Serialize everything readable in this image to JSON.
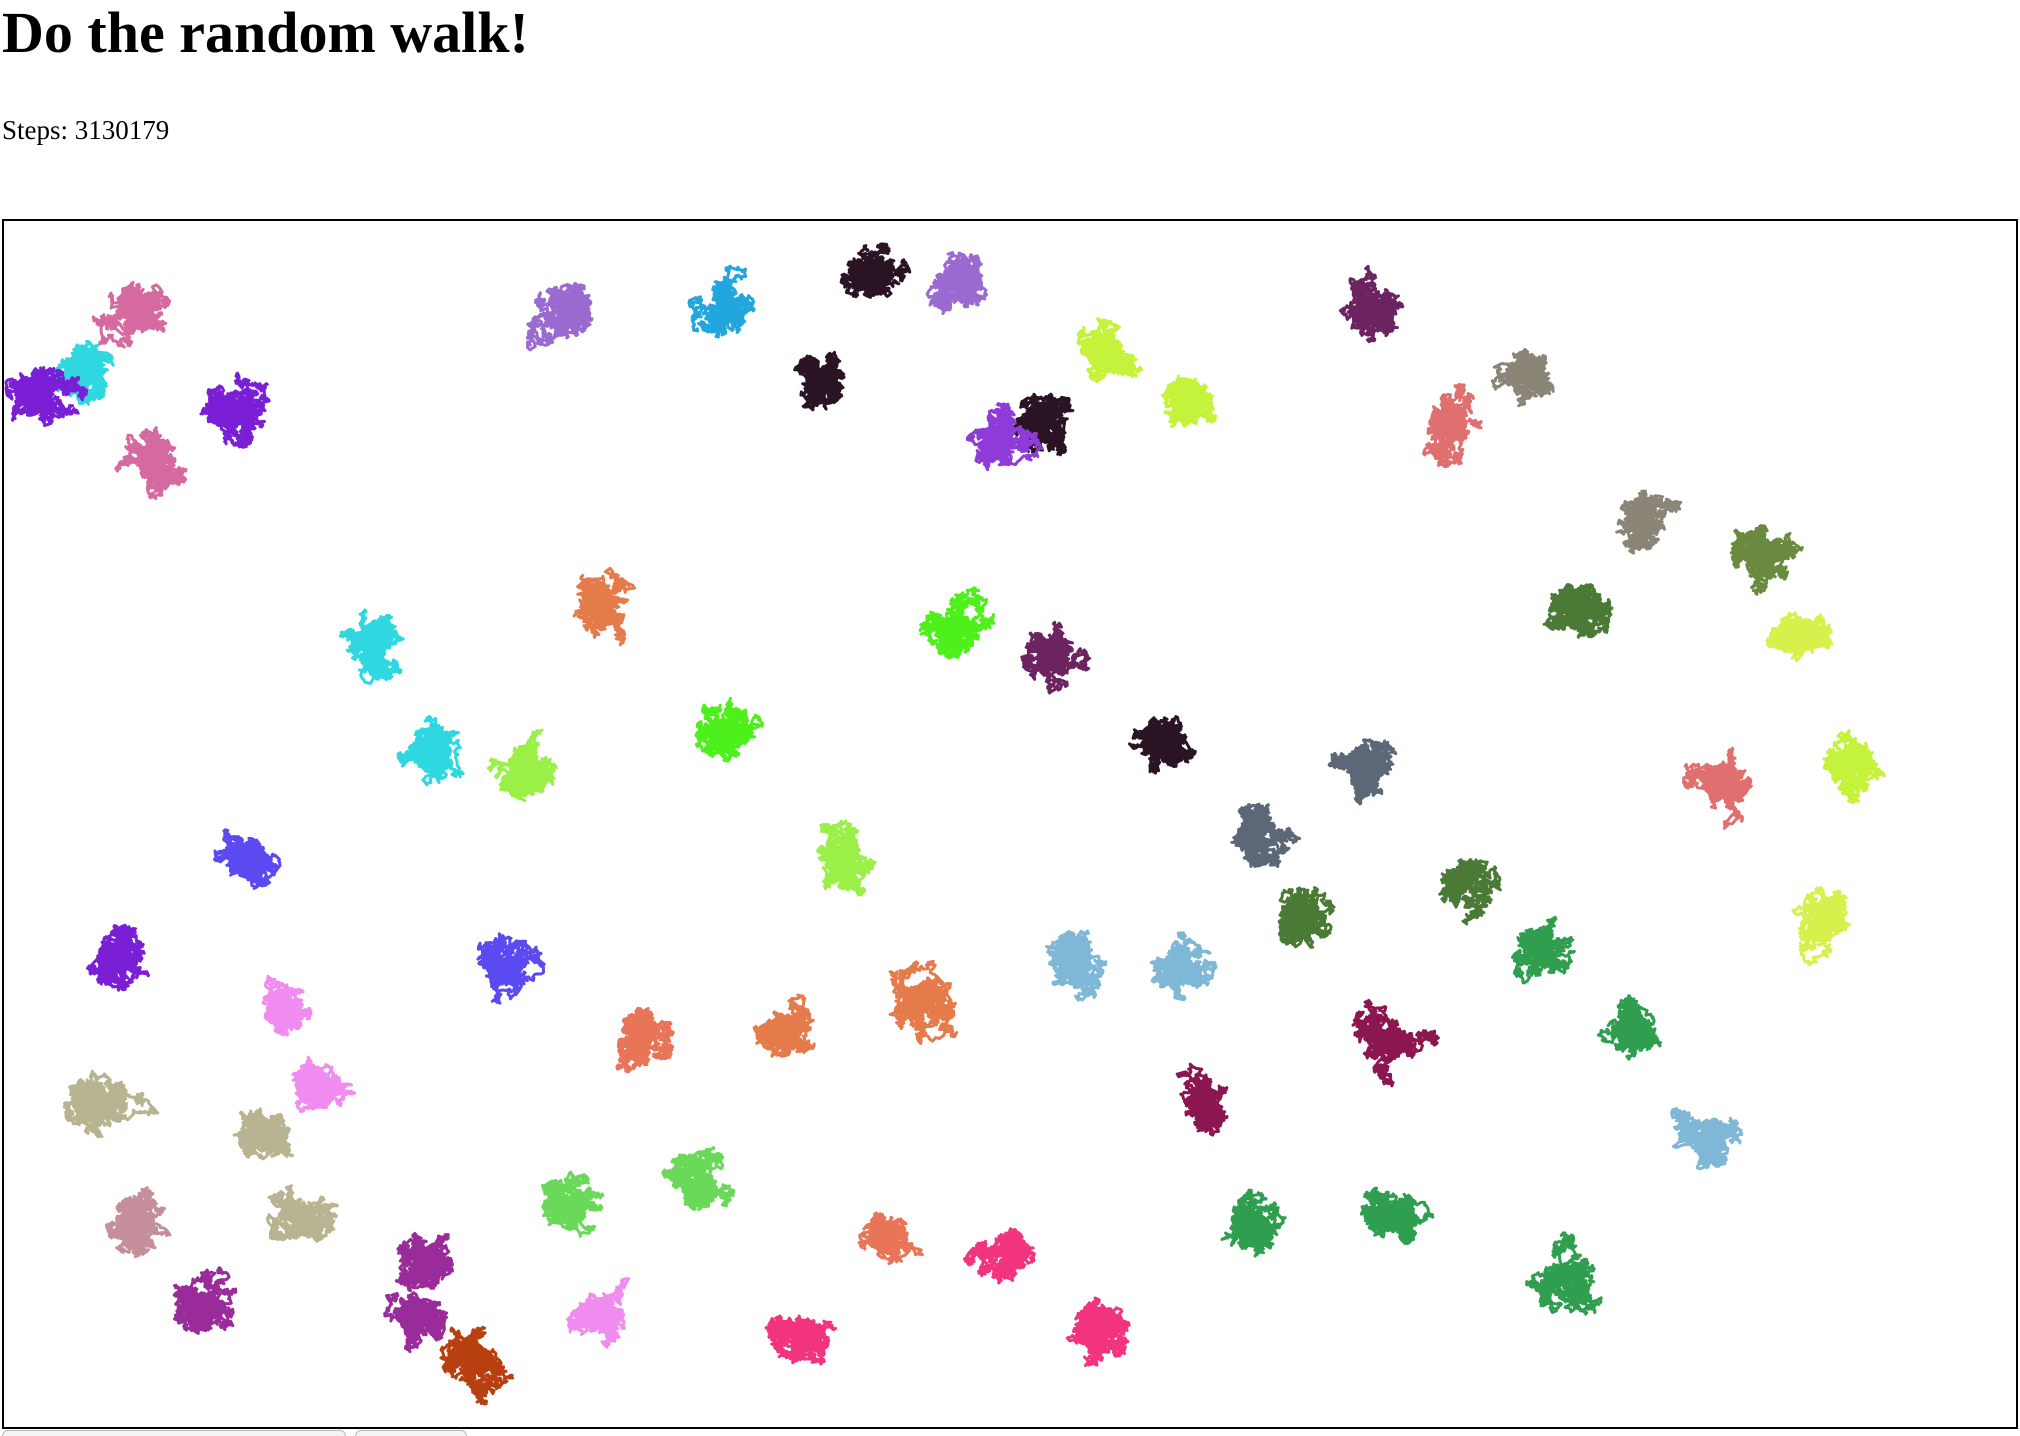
{
  "page": {
    "title": "Do the random walk!",
    "steps_label": "Steps:",
    "steps_value": "3130179"
  },
  "canvas": {
    "walk_colors": [
      "#8e3bd9",
      "#d46aa0",
      "#2fd8e0",
      "#7a1fd6",
      "#9a6ad0",
      "#21a6dd",
      "#2a1424",
      "#c5f23a",
      "#6c2461",
      "#e06f6f",
      "#8a8577",
      "#6a8a3f",
      "#4b7a36",
      "#5c6878",
      "#4ef01c",
      "#e57a4a",
      "#9af046",
      "#5a4af0",
      "#f08cf0",
      "#b8b391",
      "#9a2b9a",
      "#b84010",
      "#f2347e",
      "#7fb7d6",
      "#8b1650",
      "#2f9e4e",
      "#d8f04c",
      "#e87558",
      "#6ad95a",
      "#c48f9a"
    ]
  },
  "controls": {
    "button_1_label": "",
    "button_2_label": ""
  }
}
